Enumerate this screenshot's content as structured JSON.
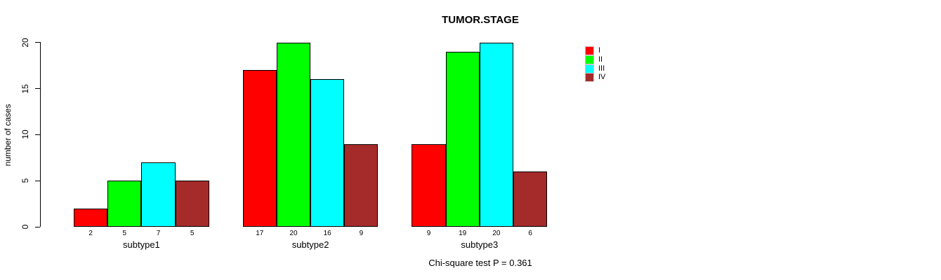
{
  "title": "TUMOR.STAGE",
  "annotation": "Chi-square test P = 0.361",
  "chart_data": {
    "type": "bar",
    "grouped": true,
    "title": "TUMOR.STAGE",
    "xlabel": "",
    "ylabel": "number of cases",
    "ylim": [
      0,
      20
    ],
    "yticks": [
      0,
      5,
      10,
      15,
      20
    ],
    "grid": false,
    "legend_position": "right",
    "categories": [
      "subtype1",
      "subtype2",
      "subtype3"
    ],
    "series": [
      {
        "name": "I",
        "color": "#ff0000",
        "values": [
          2,
          17,
          9
        ]
      },
      {
        "name": "II",
        "color": "#00ff00",
        "values": [
          5,
          20,
          19
        ]
      },
      {
        "name": "III",
        "color": "#00ffff",
        "values": [
          7,
          16,
          20
        ]
      },
      {
        "name": "IV",
        "color": "#a52a2a",
        "values": [
          5,
          9,
          6
        ]
      }
    ],
    "bar_value_labels": [
      [
        2,
        5,
        7,
        5
      ],
      [
        17,
        20,
        16,
        9
      ],
      [
        9,
        19,
        20,
        6
      ]
    ],
    "annotation": "Chi-square test P = 0.361",
    "axis_color": "#000000",
    "background_color": "#ffffff"
  }
}
